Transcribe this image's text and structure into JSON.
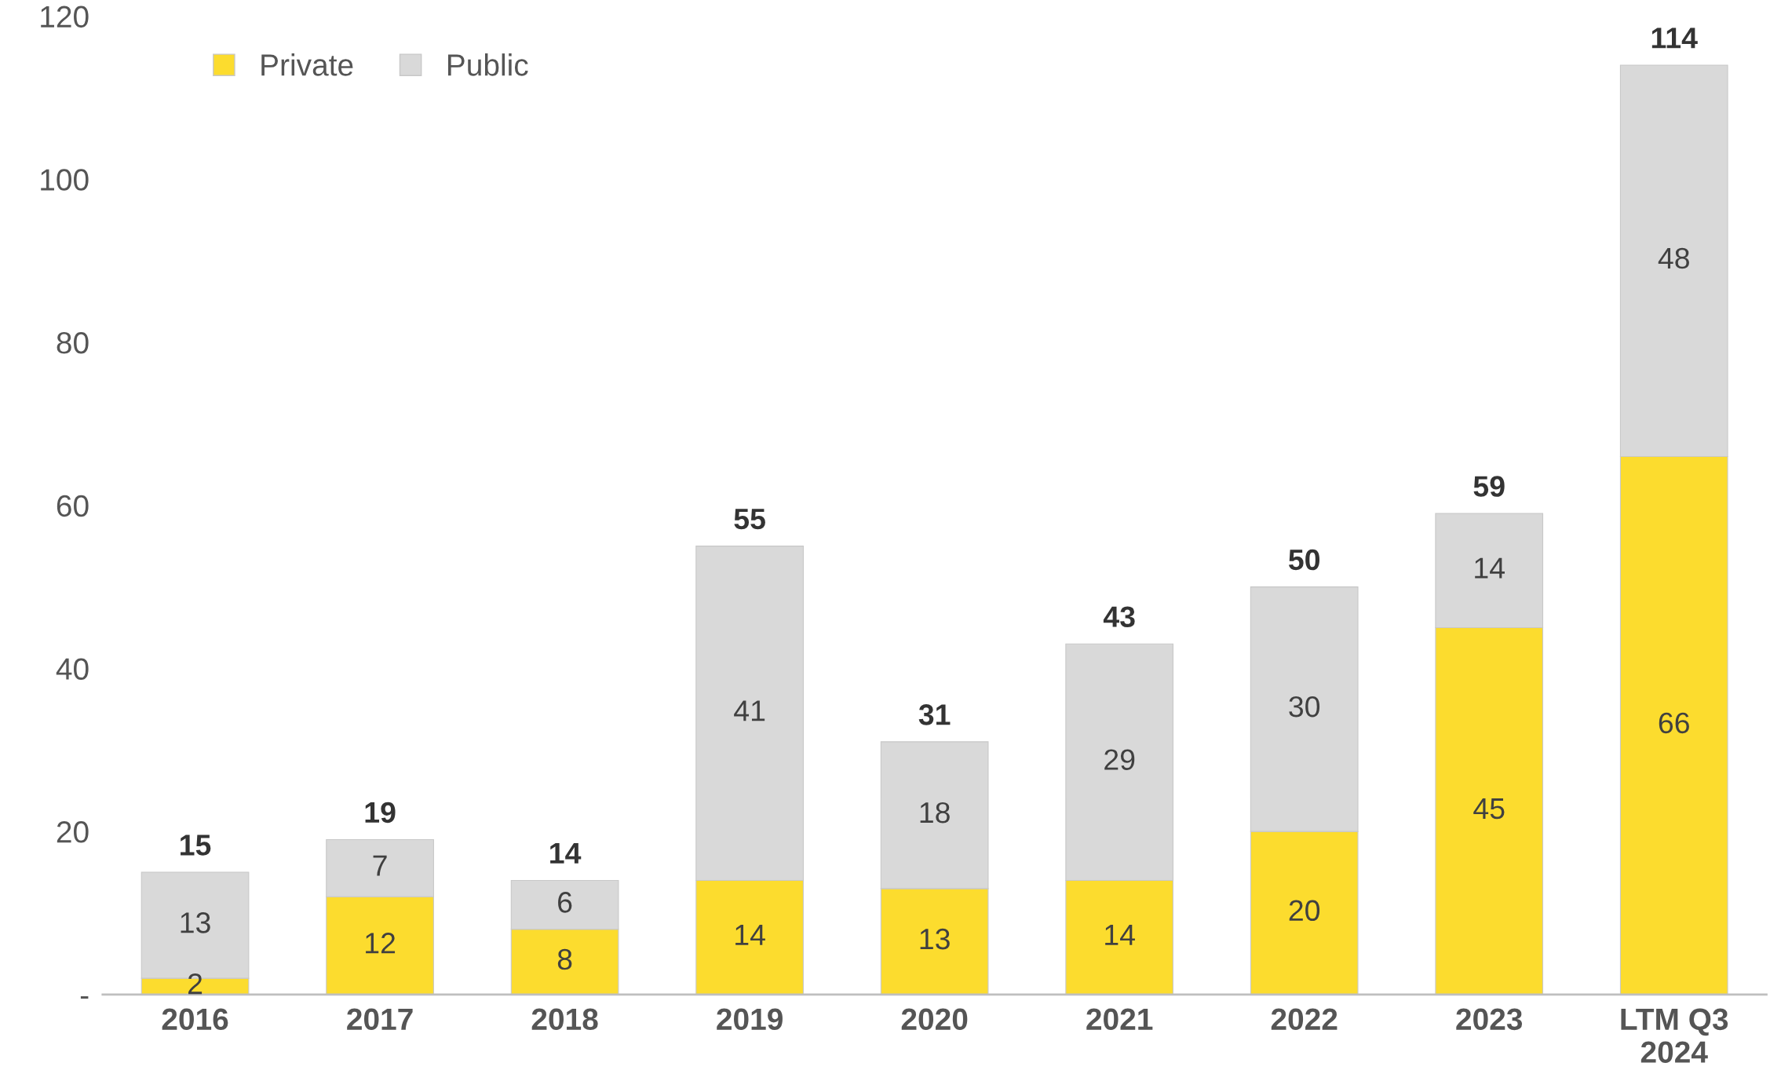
{
  "chart_data": {
    "type": "bar",
    "stacked": true,
    "categories": [
      "2016",
      "2017",
      "2018",
      "2019",
      "2020",
      "2021",
      "2022",
      "2023",
      "LTM Q3\n2024"
    ],
    "series": [
      {
        "name": "Private",
        "color": "#fcdc2e",
        "values": [
          2,
          12,
          8,
          14,
          13,
          14,
          20,
          45,
          66
        ]
      },
      {
        "name": "Public",
        "color": "#d9d9d9",
        "values": [
          13,
          7,
          6,
          41,
          18,
          29,
          30,
          14,
          48
        ]
      }
    ],
    "totals": [
      "15",
      "19",
      "14",
      "55",
      "31",
      "43",
      "50",
      "59",
      "114"
    ],
    "data_labels": true,
    "ylim": [
      0,
      120
    ],
    "yticks": [
      {
        "value": 0,
        "label": "-"
      },
      20,
      40,
      60,
      80,
      100,
      120
    ],
    "grid": false,
    "legend": "top left"
  }
}
